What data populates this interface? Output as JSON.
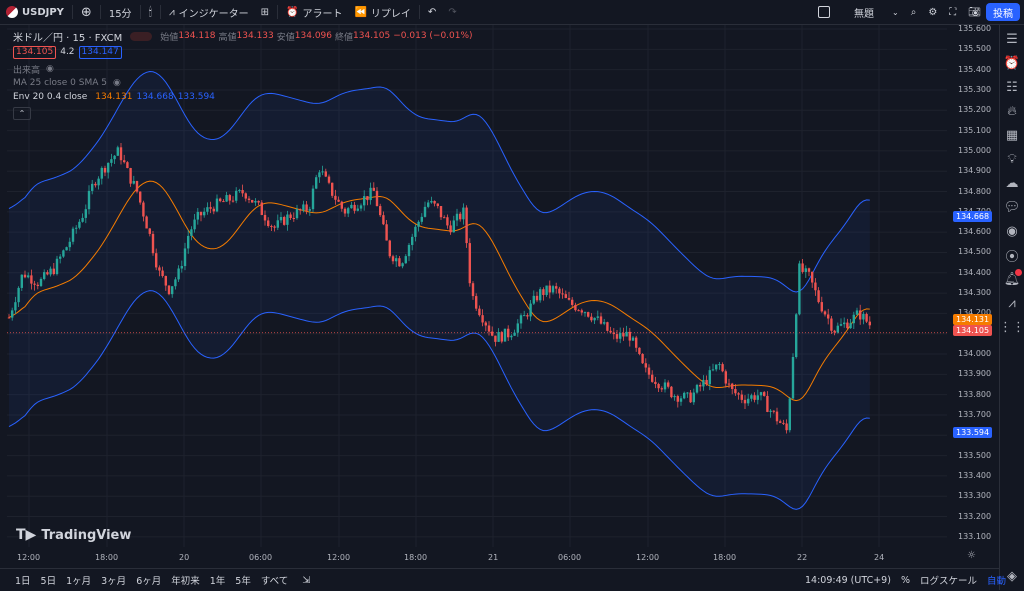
{
  "topbar": {
    "symbol": "USDJPY",
    "interval": "15分",
    "indicators": "インジケーター",
    "alert": "アラート",
    "replay": "リプレイ",
    "layout_name": "無題",
    "post": "投稿"
  },
  "legend": {
    "title": "米ドル／円 · 15 · FXCM",
    "open_label": "始値",
    "open": "134.118",
    "high_label": "高値",
    "high": "134.133",
    "low_label": "安値",
    "low": "134.096",
    "close_label": "終値",
    "close": "134.105",
    "change": "−0.013 (−0.01%)",
    "bid": "134.105",
    "spread": "4.2",
    "ask": "134.147",
    "volume": "出来高",
    "ma": "MA 25 close 0 SMA 5",
    "env": "Env 20 0.4 close",
    "env_basis": "134.131",
    "env_upper": "134.668",
    "env_lower": "133.594",
    "collapse": "⌃"
  },
  "price_axis": {
    "ticks": [
      "135.600",
      "135.500",
      "135.400",
      "135.300",
      "135.200",
      "135.100",
      "135.000",
      "134.900",
      "134.800",
      "134.700",
      "134.600",
      "134.500",
      "134.400",
      "134.300",
      "134.200",
      "134.100",
      "134.000",
      "133.900",
      "133.800",
      "133.700",
      "133.600",
      "133.500",
      "133.400",
      "133.300",
      "133.200",
      "133.100"
    ],
    "tag_upper": "134.668",
    "tag_basis": "134.131",
    "tag_last": "134.105",
    "tag_lower": "133.594"
  },
  "time_axis": {
    "ticks": [
      "12:00",
      "18:00",
      "20",
      "06:00",
      "12:00",
      "18:00",
      "21",
      "06:00",
      "12:00",
      "18:00",
      "22",
      "24"
    ]
  },
  "branding": "TradingView",
  "bottombar": {
    "ranges": [
      "1日",
      "5日",
      "1ヶ月",
      "3ヶ月",
      "6ヶ月",
      "年初来",
      "1年",
      "5年",
      "すべて"
    ],
    "clock": "14:09:49 (UTC+9)",
    "percent": "%",
    "log": "ログスケール",
    "auto": "自動"
  },
  "colors": {
    "bg": "#131722",
    "up": "#26a69a",
    "down": "#ef5350",
    "env": "#2962ff",
    "basis": "#f57c00",
    "accent": "#2962ff"
  },
  "chart_data": {
    "type": "candlestick",
    "ylim": [
      133.05,
      135.62
    ],
    "x_ticks": [
      "12:00",
      "18:00",
      "20",
      "06:00",
      "12:00",
      "18:00",
      "21",
      "06:00",
      "12:00",
      "18:00",
      "22",
      "24"
    ],
    "path_anchors": [
      [
        0,
        134.18
      ],
      [
        14,
        134.4
      ],
      [
        30,
        134.35
      ],
      [
        45,
        134.42
      ],
      [
        60,
        134.55
      ],
      [
        75,
        134.7
      ],
      [
        85,
        134.85
      ],
      [
        100,
        134.95
      ],
      [
        110,
        135.0
      ],
      [
        118,
        134.9
      ],
      [
        128,
        134.8
      ],
      [
        140,
        134.6
      ],
      [
        150,
        134.4
      ],
      [
        160,
        134.32
      ],
      [
        170,
        134.4
      ],
      [
        180,
        134.6
      ],
      [
        190,
        134.68
      ],
      [
        205,
        134.73
      ],
      [
        220,
        134.76
      ],
      [
        235,
        134.8
      ],
      [
        250,
        134.72
      ],
      [
        265,
        134.62
      ],
      [
        280,
        134.68
      ],
      [
        300,
        134.72
      ],
      [
        310,
        134.92
      ],
      [
        320,
        134.82
      ],
      [
        335,
        134.7
      ],
      [
        350,
        134.75
      ],
      [
        365,
        134.8
      ],
      [
        380,
        134.5
      ],
      [
        392,
        134.45
      ],
      [
        405,
        134.6
      ],
      [
        418,
        134.75
      ],
      [
        428,
        134.72
      ],
      [
        440,
        134.62
      ],
      [
        455,
        134.7
      ],
      [
        462,
        134.3
      ],
      [
        472,
        134.2
      ],
      [
        485,
        134.08
      ],
      [
        500,
        134.1
      ],
      [
        515,
        134.18
      ],
      [
        530,
        134.3
      ],
      [
        545,
        134.32
      ],
      [
        560,
        134.25
      ],
      [
        575,
        134.22
      ],
      [
        590,
        134.16
      ],
      [
        605,
        134.08
      ],
      [
        620,
        134.1
      ],
      [
        635,
        133.92
      ],
      [
        650,
        133.86
      ],
      [
        665,
        133.8
      ],
      [
        680,
        133.78
      ],
      [
        695,
        133.86
      ],
      [
        710,
        133.95
      ],
      [
        722,
        133.82
      ],
      [
        735,
        133.78
      ],
      [
        750,
        133.8
      ],
      [
        765,
        133.7
      ],
      [
        778,
        133.62
      ],
      [
        784,
        134.0
      ],
      [
        790,
        134.42
      ],
      [
        800,
        134.38
      ],
      [
        810,
        134.26
      ],
      [
        825,
        134.12
      ],
      [
        840,
        134.16
      ],
      [
        850,
        134.2
      ],
      [
        866,
        134.12
      ]
    ],
    "moving_average": "SMA 25",
    "envelope": {
      "length": 20,
      "percent": 0.4,
      "upper_last": 134.668,
      "basis_last": 134.131,
      "lower_last": 133.594
    }
  }
}
